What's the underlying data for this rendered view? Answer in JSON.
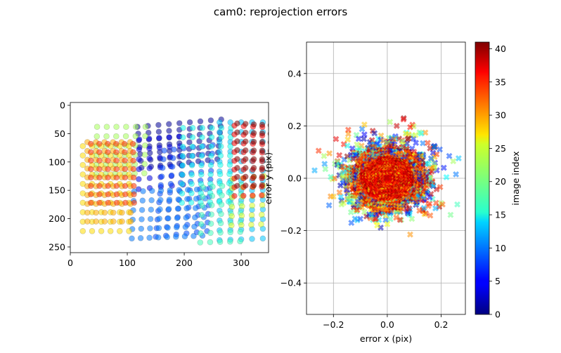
{
  "figure": {
    "title": "cam0: reprojection errors"
  },
  "chart_data": [
    {
      "type": "scatter",
      "panel": "left",
      "title": "",
      "xlabel": "",
      "ylabel": "",
      "xlim": [
        0,
        348
      ],
      "ylim": [
        260,
        -5
      ],
      "y_inverted": true,
      "x_ticks": [
        0,
        100,
        200,
        300
      ],
      "y_ticks": [
        0,
        50,
        100,
        150,
        200,
        250
      ],
      "grid": false,
      "colormap": "jet",
      "marker": "circle",
      "alpha": 0.55,
      "point_grids": [
        {
          "image_index": 1,
          "corners": [
            [
              118,
              38
            ],
            [
              265,
              25
            ],
            [
              258,
              95
            ],
            [
              125,
              110
            ]
          ],
          "rows": 7,
          "cols": 9
        },
        {
          "image_index": 4,
          "corners": [
            [
              121,
              60
            ],
            [
              191,
              55
            ],
            [
              198,
              140
            ],
            [
              120,
              148
            ]
          ],
          "rows": 6,
          "cols": 5
        },
        {
          "image_index": 8,
          "corners": [
            [
              165,
              80
            ],
            [
              250,
              70
            ],
            [
              240,
              222
            ],
            [
              150,
              232
            ]
          ],
          "rows": 11,
          "cols": 6
        },
        {
          "image_index": 10,
          "corners": [
            [
              112,
              152
            ],
            [
              238,
              148
            ],
            [
              232,
              230
            ],
            [
              108,
              235
            ]
          ],
          "rows": 6,
          "cols": 9
        },
        {
          "image_index": 13,
          "corners": [
            [
              262,
              30
            ],
            [
              338,
              30
            ],
            [
              338,
              235
            ],
            [
              262,
              238
            ]
          ],
          "rows": 13,
          "cols": 5
        },
        {
          "image_index": 16,
          "corners": [
            [
              198,
              40
            ],
            [
              282,
              40
            ],
            [
              278,
              170
            ],
            [
              196,
              172
            ]
          ],
          "rows": 9,
          "cols": 6
        },
        {
          "image_index": 18,
          "corners": [
            [
              233,
              145
            ],
            [
              300,
              140
            ],
            [
              298,
              240
            ],
            [
              228,
              242
            ]
          ],
          "rows": 7,
          "cols": 5
        },
        {
          "image_index": 22,
          "corners": [
            [
              47,
              38
            ],
            [
              132,
              38
            ],
            [
              130,
              120
            ],
            [
              45,
              122
            ]
          ],
          "rows": 6,
          "cols": 6
        },
        {
          "image_index": 24,
          "corners": [
            [
              285,
              130
            ],
            [
              340,
              125
            ],
            [
              335,
              210
            ],
            [
              283,
              212
            ]
          ],
          "rows": 6,
          "cols": 4
        },
        {
          "image_index": 27,
          "corners": [
            [
              22,
              72
            ],
            [
              103,
              72
            ],
            [
              103,
              222
            ],
            [
              22,
              222
            ]
          ],
          "rows": 10,
          "cols": 6
        },
        {
          "image_index": 29,
          "corners": [
            [
              30,
              65
            ],
            [
              105,
              65
            ],
            [
              106,
              205
            ],
            [
              30,
              205
            ]
          ],
          "rows": 10,
          "cols": 6
        },
        {
          "image_index": 34,
          "corners": [
            [
              36,
              68
            ],
            [
              110,
              68
            ],
            [
              112,
              172
            ],
            [
              36,
              172
            ]
          ],
          "rows": 8,
          "cols": 6
        },
        {
          "image_index": 36,
          "corners": [
            [
              288,
              36
            ],
            [
              370,
              40
            ],
            [
              368,
              158
            ],
            [
              288,
              160
            ]
          ],
          "rows": 9,
          "cols": 6
        },
        {
          "image_index": 41,
          "corners": [
            [
              293,
              32
            ],
            [
              366,
              36
            ],
            [
              366,
              140
            ],
            [
              293,
              142
            ]
          ],
          "rows": 8,
          "cols": 6
        }
      ]
    },
    {
      "type": "scatter",
      "panel": "right",
      "title": "",
      "xlabel": "error x (pix)",
      "ylabel": "error y (pix)",
      "xlim": [
        -0.3,
        0.29
      ],
      "ylim": [
        -0.52,
        0.52
      ],
      "x_ticks": [
        -0.2,
        0.0,
        0.2
      ],
      "y_ticks": [
        -0.4,
        -0.2,
        0.0,
        0.2,
        0.4
      ],
      "x_tick_labels": [
        "−0.2",
        "0.0",
        "0.2"
      ],
      "y_tick_labels": [
        "−0.4",
        "−0.2",
        "0.0",
        "0.2",
        "0.4"
      ],
      "grid": true,
      "colormap": "jet",
      "marker": "x",
      "alpha": 0.55,
      "distribution": {
        "center": [
          0.0,
          0.0
        ],
        "std_x": 0.07,
        "std_y": 0.06,
        "n_points": 2600
      },
      "outliers": [
        {
          "x": -0.27,
          "y": 0.03,
          "image_index": 12
        },
        {
          "x": -0.255,
          "y": 0.105,
          "image_index": 34
        },
        {
          "x": -0.235,
          "y": 0.085,
          "image_index": 22
        },
        {
          "x": -0.23,
          "y": 0.035,
          "image_index": 20
        },
        {
          "x": -0.215,
          "y": 0.095,
          "image_index": 30
        },
        {
          "x": -0.21,
          "y": 0.005,
          "image_index": 18
        },
        {
          "x": -0.2,
          "y": -0.07,
          "image_index": 28
        },
        {
          "x": -0.17,
          "y": -0.1,
          "image_index": 22
        },
        {
          "x": -0.145,
          "y": 0.185,
          "image_index": 34
        },
        {
          "x": -0.135,
          "y": -0.13,
          "image_index": 20
        },
        {
          "x": -0.1,
          "y": -0.155,
          "image_index": 8
        },
        {
          "x": -0.085,
          "y": 0.205,
          "image_index": 28
        },
        {
          "x": -0.06,
          "y": -0.14,
          "image_index": 14
        },
        {
          "x": 0.0,
          "y": -0.175,
          "image_index": 25
        },
        {
          "x": 0.01,
          "y": 0.215,
          "image_index": 22
        },
        {
          "x": 0.035,
          "y": 0.2,
          "image_index": 38
        },
        {
          "x": 0.06,
          "y": 0.225,
          "image_index": 36
        },
        {
          "x": 0.085,
          "y": -0.215,
          "image_index": 30
        },
        {
          "x": 0.105,
          "y": 0.165,
          "image_index": 24
        },
        {
          "x": 0.12,
          "y": 0.175,
          "image_index": 20
        },
        {
          "x": 0.15,
          "y": 0.135,
          "image_index": 34
        },
        {
          "x": 0.175,
          "y": 0.12,
          "image_index": 12
        },
        {
          "x": 0.195,
          "y": 0.11,
          "image_index": 8
        },
        {
          "x": 0.2,
          "y": -0.095,
          "image_index": 22
        },
        {
          "x": 0.205,
          "y": -0.1,
          "image_index": 32
        },
        {
          "x": 0.21,
          "y": 0.04,
          "image_index": 6
        },
        {
          "x": 0.23,
          "y": 0.085,
          "image_index": 8
        },
        {
          "x": 0.235,
          "y": -0.14,
          "image_index": 20
        },
        {
          "x": 0.245,
          "y": 0.065,
          "image_index": 22
        },
        {
          "x": 0.255,
          "y": 0.015,
          "image_index": 10
        },
        {
          "x": 0.26,
          "y": -0.1,
          "image_index": 18
        }
      ]
    }
  ],
  "colorbar": {
    "label": "image index",
    "min": 0,
    "max": 41,
    "ticks": [
      0,
      5,
      10,
      15,
      20,
      25,
      30,
      35,
      40
    ],
    "colormap": "jet"
  }
}
